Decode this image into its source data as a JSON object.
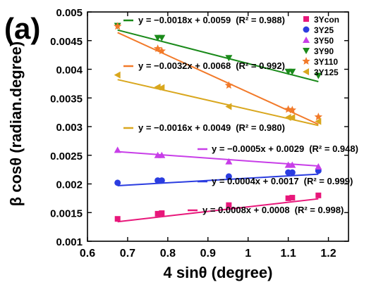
{
  "panel_label": "(a)",
  "chart_data": {
    "type": "scatter",
    "title": "",
    "xlabel": "4 sinθ (degree)",
    "ylabel": "β cosθ (radian.degree)",
    "xlim": [
      0.6,
      1.25
    ],
    "ylim": [
      0.001,
      0.005
    ],
    "xticks": [
      "0.6",
      "0.7",
      "0.8",
      "0.9",
      "1",
      "1.1",
      "1.2"
    ],
    "yticks": [
      "0.001",
      "0.0015",
      "0.002",
      "0.0025",
      "0.003",
      "0.0035",
      "0.004",
      "0.0045",
      "0.005"
    ],
    "legend_position": "top-right",
    "series": [
      {
        "name": "3Ycon",
        "color": "#e8177a",
        "marker": "square",
        "x": [
          0.675,
          0.775,
          0.785,
          0.952,
          1.1,
          1.11,
          1.175
        ],
        "y": [
          0.00139,
          0.00148,
          0.00149,
          0.00163,
          0.00175,
          0.00176,
          0.0018
        ],
        "fit": {
          "slope": 0.0008,
          "intercept": 0.0008
        },
        "equation": "y = 0.0008x + 0.0008",
        "r2": "(R² = 0.998)"
      },
      {
        "name": "3Y25",
        "color": "#2b3de0",
        "marker": "circle",
        "x": [
          0.675,
          0.775,
          0.785,
          0.952,
          1.1,
          1.11,
          1.175
        ],
        "y": [
          0.00202,
          0.00206,
          0.00206,
          0.00213,
          0.0022,
          0.0022,
          0.00223
        ],
        "fit": {
          "slope": 0.0004,
          "intercept": 0.0017
        },
        "equation": "y = 0.0004x + 0.0017",
        "r2": "(R² = 0.999)"
      },
      {
        "name": "3Y50",
        "color": "#c83ee8",
        "marker": "triangle-up",
        "x": [
          0.675,
          0.775,
          0.785,
          0.952,
          1.1,
          1.11,
          1.175
        ],
        "y": [
          0.00259,
          0.0025,
          0.0025,
          0.00239,
          0.00233,
          0.00233,
          0.0023
        ],
        "fit": {
          "slope": -0.0005,
          "intercept": 0.0029
        },
        "equation": "y = −0.0005x + 0.0029",
        "r2": "(R² = 0.948)"
      },
      {
        "name": "3Y90",
        "color": "#1a8a1a",
        "marker": "triangle-down",
        "x": [
          0.675,
          0.775,
          0.785,
          0.952,
          1.1,
          1.11,
          1.175
        ],
        "y": [
          0.00476,
          0.00455,
          0.00455,
          0.0042,
          0.00396,
          0.00396,
          0.00389
        ],
        "fit": {
          "slope": -0.0018,
          "intercept": 0.0059
        },
        "equation": "y = −0.0018x + 0.0059",
        "r2": "(R² = 0.988)"
      },
      {
        "name": "3Y110",
        "color": "#f27a2a",
        "marker": "star",
        "x": [
          0.675,
          0.775,
          0.785,
          0.952,
          1.1,
          1.11,
          1.175
        ],
        "y": [
          0.00475,
          0.00436,
          0.00432,
          0.00372,
          0.0033,
          0.00329,
          0.00317
        ],
        "fit": {
          "slope": -0.0032,
          "intercept": 0.0068
        },
        "equation": "y = −0.0032x + 0.0068",
        "r2": "(R² = 0.992)"
      },
      {
        "name": "3Y125",
        "color": "#d9a71e",
        "marker": "triangle-left",
        "x": [
          0.675,
          0.775,
          0.785,
          0.952,
          1.1,
          1.11,
          1.175
        ],
        "y": [
          0.0039,
          0.00369,
          0.00368,
          0.00335,
          0.00316,
          0.00316,
          0.00309
        ],
        "fit": {
          "slope": -0.0016,
          "intercept": 0.0049
        },
        "equation": "y = −0.0016x + 0.0049",
        "r2": "(R² = 0.980)"
      }
    ]
  }
}
